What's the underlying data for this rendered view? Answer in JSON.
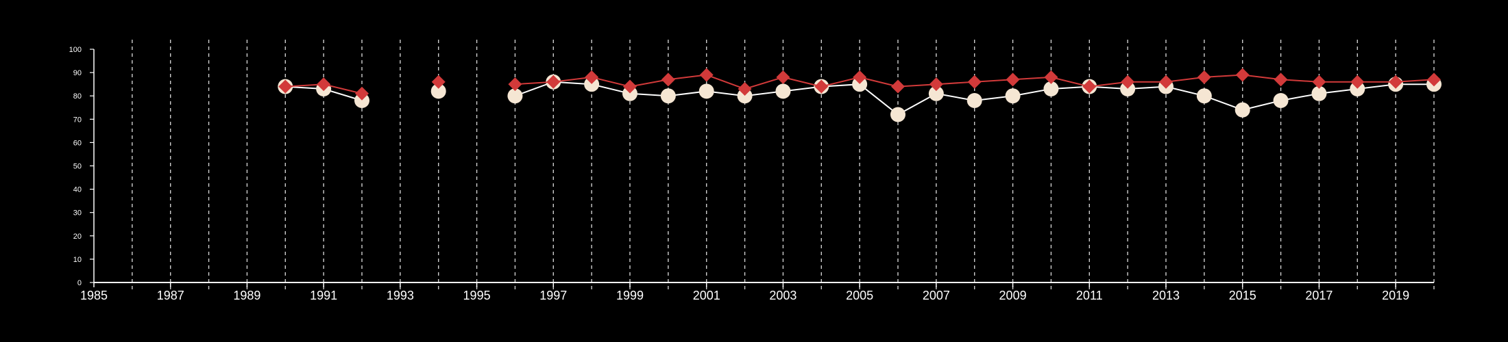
{
  "chart_data": {
    "type": "line",
    "title": "",
    "xlabel": "",
    "ylabel": "",
    "xlim": [
      1985,
      2020
    ],
    "ylim": [
      0,
      100
    ],
    "x_ticks": [
      1985,
      1987,
      1989,
      1991,
      1993,
      1995,
      1997,
      1999,
      2001,
      2003,
      2005,
      2007,
      2009,
      2011,
      2013,
      2015,
      2017,
      2019
    ],
    "y_ticks": [
      0,
      10,
      20,
      30,
      40,
      50,
      60,
      70,
      80,
      90,
      100
    ],
    "vertical_grid_years": [
      1986,
      1987,
      1988,
      1989,
      1990,
      1991,
      1992,
      1993,
      1994,
      1995,
      1996,
      1997,
      1998,
      1999,
      2000,
      2001,
      2002,
      2003,
      2004,
      2005,
      2006,
      2007,
      2008,
      2009,
      2010,
      2011,
      2012,
      2013,
      2014,
      2015,
      2016,
      2017,
      2018,
      2019,
      2020
    ],
    "grid": "vertical dashed",
    "legend": "none",
    "series": [
      {
        "marker": "circle",
        "color": "#f5e6d3",
        "line_color": "#ffffff",
        "points": [
          {
            "x": 1990,
            "y": 84
          },
          {
            "x": 1991,
            "y": 83
          },
          {
            "x": 1992,
            "y": 78
          },
          {
            "x": 1994,
            "y": 82
          },
          {
            "x": 1996,
            "y": 80
          },
          {
            "x": 1997,
            "y": 86
          },
          {
            "x": 1998,
            "y": 85
          },
          {
            "x": 1999,
            "y": 81
          },
          {
            "x": 2000,
            "y": 80
          },
          {
            "x": 2001,
            "y": 82
          },
          {
            "x": 2002,
            "y": 80
          },
          {
            "x": 2003,
            "y": 82
          },
          {
            "x": 2004,
            "y": 84
          },
          {
            "x": 2005,
            "y": 85
          },
          {
            "x": 2006,
            "y": 72
          },
          {
            "x": 2007,
            "y": 81
          },
          {
            "x": 2008,
            "y": 78
          },
          {
            "x": 2009,
            "y": 80
          },
          {
            "x": 2010,
            "y": 83
          },
          {
            "x": 2011,
            "y": 84
          },
          {
            "x": 2012,
            "y": 83
          },
          {
            "x": 2013,
            "y": 84
          },
          {
            "x": 2014,
            "y": 80
          },
          {
            "x": 2015,
            "y": 74
          },
          {
            "x": 2016,
            "y": 78
          },
          {
            "x": 2017,
            "y": 81
          },
          {
            "x": 2018,
            "y": 83
          },
          {
            "x": 2019,
            "y": 85
          },
          {
            "x": 2020,
            "y": 85
          }
        ]
      },
      {
        "marker": "diamond",
        "color": "#d23a3a",
        "line_color": "#d23a3a",
        "points": [
          {
            "x": 1990,
            "y": 84
          },
          {
            "x": 1991,
            "y": 85
          },
          {
            "x": 1992,
            "y": 81
          },
          {
            "x": 1994,
            "y": 86
          },
          {
            "x": 1996,
            "y": 85
          },
          {
            "x": 1997,
            "y": 86
          },
          {
            "x": 1998,
            "y": 88
          },
          {
            "x": 1999,
            "y": 84
          },
          {
            "x": 2000,
            "y": 87
          },
          {
            "x": 2001,
            "y": 89
          },
          {
            "x": 2002,
            "y": 83
          },
          {
            "x": 2003,
            "y": 88
          },
          {
            "x": 2004,
            "y": 84
          },
          {
            "x": 2005,
            "y": 88
          },
          {
            "x": 2006,
            "y": 84
          },
          {
            "x": 2007,
            "y": 85
          },
          {
            "x": 2008,
            "y": 86
          },
          {
            "x": 2009,
            "y": 87
          },
          {
            "x": 2010,
            "y": 88
          },
          {
            "x": 2011,
            "y": 84
          },
          {
            "x": 2012,
            "y": 86
          },
          {
            "x": 2013,
            "y": 86
          },
          {
            "x": 2014,
            "y": 88
          },
          {
            "x": 2015,
            "y": 89
          },
          {
            "x": 2016,
            "y": 87
          },
          {
            "x": 2017,
            "y": 86
          },
          {
            "x": 2018,
            "y": 86
          },
          {
            "x": 2019,
            "y": 86
          },
          {
            "x": 2020,
            "y": 87
          }
        ]
      }
    ],
    "colors": {
      "background": "#000000",
      "axis": "#ffffff",
      "grid": "#cfcfcf"
    }
  }
}
